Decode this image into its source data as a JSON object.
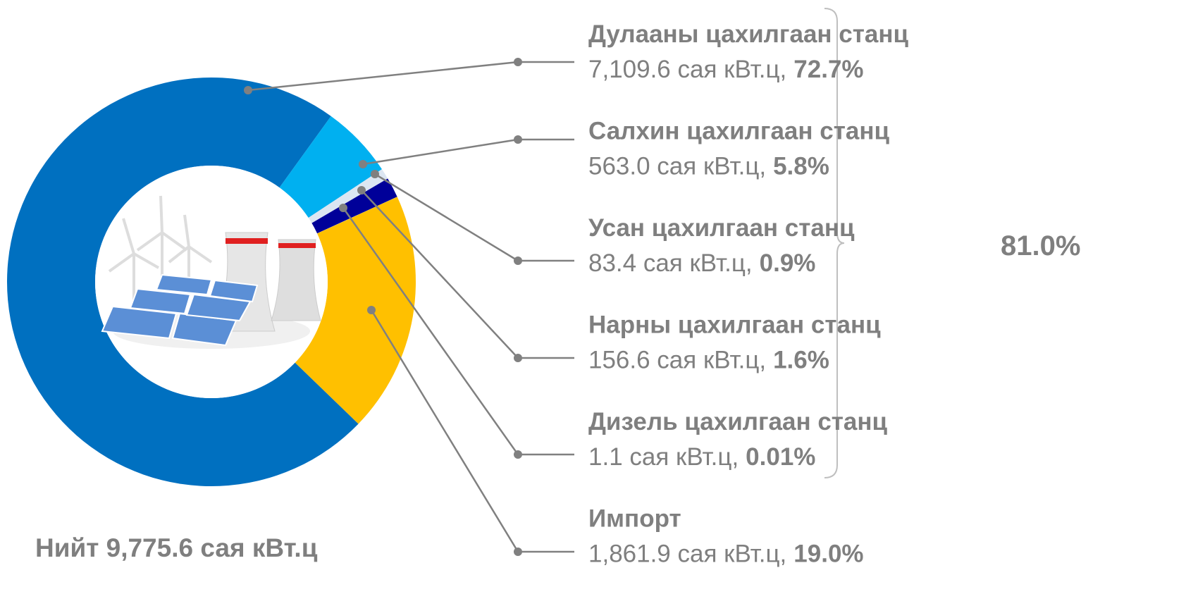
{
  "chart_data": {
    "type": "donut",
    "categories": [
      "Дулааны цахилгаан станц",
      "Салхин цахилгаан станц",
      "Усан цахилгаан станц",
      "Нарны цахилгаан станц",
      "Дизель цахилгаан станц",
      "Импорт"
    ],
    "values": [
      7109.6,
      563.0,
      83.4,
      156.6,
      1.1,
      1861.9
    ],
    "value_labels": [
      "7,109.6 сая кВт.ц,",
      "563.0 сая кВт.ц,",
      "83.4 сая кВт.ц,",
      "156.6 сая кВт.ц,",
      "1.1 сая кВт.ц,",
      "1,861.9 сая кВт.ц,"
    ],
    "percent_labels": [
      "72.7%",
      "5.8%",
      "0.9%",
      "1.6%",
      "0.01%",
      "19.0%"
    ],
    "colors": [
      "#0070c0",
      "#00b0f0",
      "#dce6f2",
      "#000099",
      "#c5d9f1",
      "#ffc000"
    ],
    "total_label": "Нийт 9,775.6 сая кВт.ц",
    "group_label": "81.0%"
  }
}
